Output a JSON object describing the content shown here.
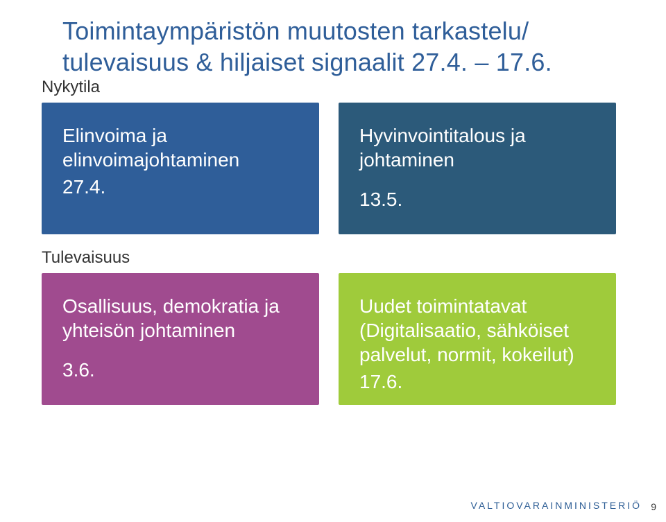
{
  "title_line1": "Toimintaympäristön muutosten tarkastelu/",
  "title_line2": "tulevaisuus & hiljaiset signaalit 27.4. – 17.6.",
  "label_now": "Nykytila",
  "label_future": "Tulevaisuus",
  "boxes": {
    "topLeft": {
      "heading": "Elinvoima ja elinvoimajohtaminen",
      "date": "27.4.",
      "bg": "#2f5e99"
    },
    "topRight": {
      "heading": "Hyvinvointitalous ja johtaminen",
      "date": "13.5.",
      "bg": "#2c5a7a"
    },
    "bottomLeft": {
      "heading": "Osallisuus, demokratia ja yhteisön johtaminen",
      "date": "3.6.",
      "bg": "#a04b8f"
    },
    "bottomRight": {
      "heading": "Uudet toimintatavat (Digitalisaatio, sähköiset palvelut, normit, kokeilut)",
      "date": "17.6.",
      "bg": "#9fcb3b"
    }
  },
  "footer": "VALTIOVARAINMINISTERIÖ",
  "page_number": "9",
  "title_color": "#2f5e99",
  "text_color": "#333333",
  "footer_color": "#2b5c94",
  "background": "#ffffff",
  "box_text_color": "#ffffff"
}
